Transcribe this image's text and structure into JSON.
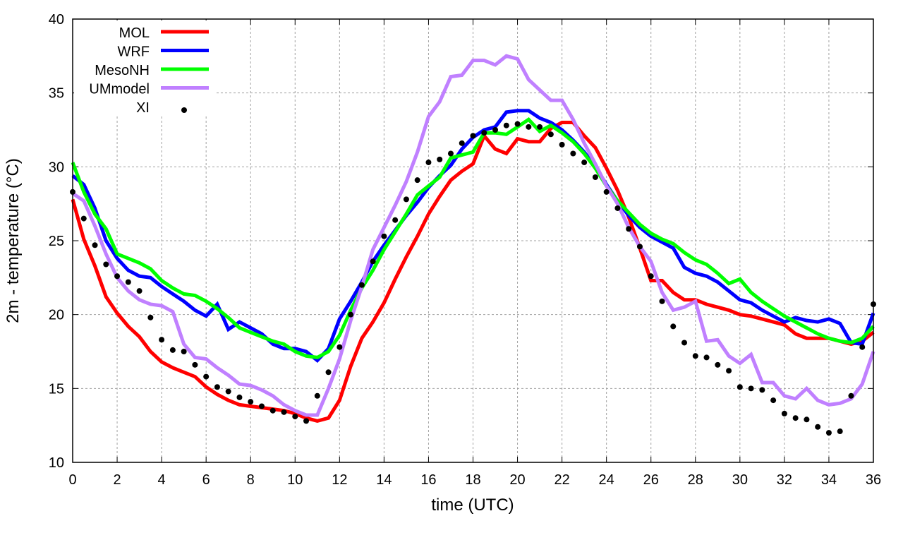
{
  "chart_data": {
    "type": "line",
    "title": "",
    "xlabel": "time (UTC)",
    "ylabel": "2m - temperature (°C)",
    "xlim": [
      0,
      36
    ],
    "ylim": [
      10,
      40
    ],
    "xticks": [
      0,
      2,
      4,
      6,
      8,
      10,
      12,
      14,
      16,
      18,
      20,
      22,
      24,
      26,
      28,
      30,
      32,
      34,
      36
    ],
    "yticks": [
      10,
      15,
      20,
      25,
      30,
      35,
      40
    ],
    "grid": true,
    "legend_position": "top-left",
    "x_step": 0.5,
    "series": [
      {
        "name": "MOL",
        "color": "#ff0000",
        "style": "line",
        "values": [
          27.8,
          25.1,
          23.3,
          21.2,
          20.1,
          19.2,
          18.5,
          17.5,
          16.8,
          16.4,
          16.1,
          15.8,
          15.1,
          14.6,
          14.2,
          13.9,
          13.8,
          13.7,
          13.6,
          13.5,
          13.3,
          13.0,
          12.8,
          13.0,
          14.2,
          16.5,
          18.4,
          19.5,
          20.8,
          22.4,
          23.9,
          25.3,
          26.8,
          28.0,
          29.1,
          29.7,
          30.2,
          32.1,
          31.2,
          30.9,
          31.9,
          31.7,
          31.7,
          32.6,
          33.0,
          33.0,
          32.1,
          31.3,
          29.9,
          28.4,
          26.6,
          24.5,
          22.3,
          22.3,
          21.5,
          21.0,
          21.0,
          20.7,
          20.5,
          20.3,
          20.0,
          19.9,
          19.7,
          19.5,
          19.3,
          18.7,
          18.4,
          18.4,
          18.4,
          18.2,
          18.0,
          18.2,
          18.8
        ]
      },
      {
        "name": "WRF",
        "color": "#0000ff",
        "style": "line",
        "values": [
          29.4,
          28.8,
          27.2,
          25.0,
          23.8,
          23.0,
          22.6,
          22.5,
          21.9,
          21.4,
          20.9,
          20.3,
          19.9,
          20.7,
          19.0,
          19.5,
          19.1,
          18.7,
          18.0,
          17.7,
          17.7,
          17.5,
          16.9,
          17.7,
          19.7,
          20.9,
          22.2,
          23.6,
          24.7,
          25.7,
          26.7,
          27.6,
          28.6,
          29.4,
          30.1,
          31.2,
          32.0,
          32.5,
          32.7,
          33.7,
          33.8,
          33.8,
          33.3,
          33.0,
          32.5,
          31.8,
          31.0,
          30.0,
          28.8,
          27.7,
          26.7,
          25.9,
          25.3,
          24.9,
          24.5,
          23.2,
          22.8,
          22.6,
          22.2,
          21.6,
          21.0,
          20.8,
          20.3,
          19.9,
          19.5,
          19.8,
          19.6,
          19.5,
          19.7,
          19.4,
          18.1,
          18.0,
          20.1
        ]
      },
      {
        "name": "MesoNH",
        "color": "#00ff00",
        "style": "line",
        "values": [
          30.3,
          28.3,
          26.8,
          25.8,
          24.1,
          23.8,
          23.5,
          23.1,
          22.3,
          21.8,
          21.4,
          21.3,
          20.9,
          20.4,
          19.8,
          19.1,
          18.8,
          18.5,
          18.2,
          18.0,
          17.5,
          17.2,
          17.1,
          17.5,
          18.6,
          20.3,
          21.8,
          23.0,
          24.4,
          25.6,
          26.8,
          28.1,
          28.7,
          29.3,
          30.6,
          30.8,
          31.0,
          32.3,
          32.3,
          32.2,
          32.7,
          33.2,
          32.4,
          32.8,
          32.3,
          31.7,
          30.9,
          29.9,
          28.7,
          27.7,
          26.9,
          26.1,
          25.5,
          25.1,
          24.8,
          24.2,
          23.7,
          23.4,
          22.8,
          22.1,
          22.4,
          21.5,
          20.9,
          20.4,
          19.9,
          19.5,
          19.1,
          18.7,
          18.4,
          18.2,
          18.1,
          18.4,
          19.2
        ]
      },
      {
        "name": "UMmodel",
        "color": "#c080ff",
        "style": "line",
        "values": [
          28.2,
          27.7,
          26.0,
          24.1,
          22.5,
          21.6,
          21.0,
          20.7,
          20.6,
          20.2,
          18.0,
          17.1,
          17.0,
          16.4,
          15.9,
          15.3,
          15.2,
          14.9,
          14.5,
          13.9,
          13.5,
          13.2,
          13.2,
          15.0,
          17.0,
          19.6,
          21.9,
          24.4,
          25.9,
          27.4,
          29.0,
          31.0,
          33.4,
          34.4,
          36.1,
          36.2,
          37.2,
          37.2,
          36.9,
          37.5,
          37.3,
          35.9,
          35.2,
          34.5,
          34.5,
          33.2,
          31.6,
          30.2,
          28.7,
          27.5,
          25.9,
          24.6,
          23.6,
          21.5,
          20.3,
          20.5,
          20.9,
          18.2,
          18.3,
          17.2,
          16.7,
          17.3,
          15.4,
          15.4,
          14.5,
          14.3,
          15.0,
          14.2,
          13.9,
          14.0,
          14.3,
          15.3,
          17.5
        ]
      },
      {
        "name": "XI",
        "color": "#000000",
        "style": "points",
        "values": [
          28.3,
          26.5,
          24.7,
          23.4,
          22.6,
          22.2,
          21.6,
          19.8,
          18.3,
          17.6,
          17.5,
          16.6,
          15.8,
          15.1,
          14.8,
          14.4,
          14.1,
          13.8,
          13.5,
          13.4,
          13.1,
          12.8,
          14.5,
          16.1,
          17.8,
          20.0,
          22.0,
          23.6,
          25.3,
          26.4,
          27.8,
          29.1,
          30.3,
          30.5,
          30.9,
          31.6,
          32.1,
          32.3,
          32.5,
          32.8,
          32.9,
          32.7,
          32.7,
          32.2,
          31.5,
          30.9,
          30.3,
          29.3,
          28.3,
          27.2,
          25.8,
          24.6,
          22.6,
          20.9,
          19.2,
          18.1,
          17.2,
          17.1,
          16.6,
          16.2,
          15.1,
          15.0,
          14.9,
          14.2,
          13.3,
          13.0,
          12.9,
          12.4,
          12.0,
          12.1,
          14.5,
          17.8,
          20.7
        ]
      }
    ]
  }
}
